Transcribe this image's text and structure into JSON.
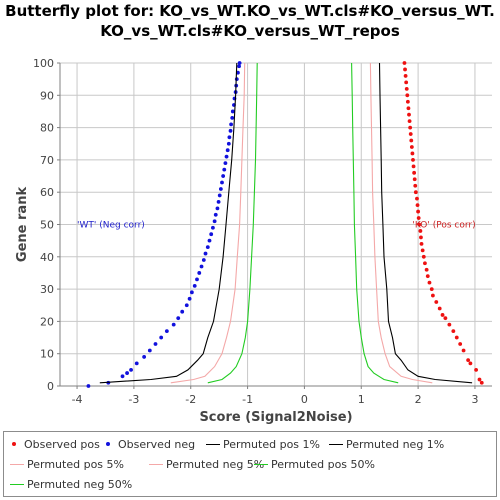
{
  "chart_data": {
    "type": "line",
    "title_lines": [
      "Butterfly plot for: KO_vs_WT.KO_vs_WT.cls#KO_versus_WT.",
      "KO_vs_WT.cls#KO_versus_WT_repos"
    ],
    "xlabel": "Score (Signal2Noise)",
    "ylabel": "Gene rank",
    "xlim": [
      -4.3,
      3.3
    ],
    "ylim": [
      0,
      100
    ],
    "x_ticks": [
      -4,
      -3,
      -2,
      -1,
      0,
      1,
      2,
      3
    ],
    "y_ticks": [
      0,
      10,
      20,
      30,
      40,
      50,
      60,
      70,
      80,
      90,
      100
    ],
    "grid": true,
    "grid_color": "#c8c8c8",
    "annotations": [
      {
        "text": "'WT' (Neg corr)",
        "x": -4.0,
        "y": 49,
        "color": "#2222cc"
      },
      {
        "text": "'KO' (Pos corr)",
        "x": 1.9,
        "y": 49,
        "color": "#cc2222"
      }
    ],
    "series": [
      {
        "name": "Observed pos",
        "kind": "points",
        "color": "#ee1111",
        "points": [
          [
            3.12,
            1
          ],
          [
            3.08,
            2
          ],
          [
            3.02,
            5
          ],
          [
            2.92,
            7
          ],
          [
            2.88,
            8
          ],
          [
            2.8,
            11
          ],
          [
            2.74,
            13
          ],
          [
            2.68,
            15
          ],
          [
            2.62,
            17
          ],
          [
            2.55,
            19
          ],
          [
            2.48,
            21
          ],
          [
            2.43,
            22
          ],
          [
            2.38,
            24
          ],
          [
            2.32,
            26
          ],
          [
            2.26,
            28
          ],
          [
            2.24,
            30
          ],
          [
            2.2,
            32
          ],
          [
            2.17,
            34
          ],
          [
            2.15,
            36
          ],
          [
            2.12,
            38
          ],
          [
            2.1,
            40
          ],
          [
            2.08,
            42
          ],
          [
            2.06,
            44
          ],
          [
            2.05,
            46
          ],
          [
            2.04,
            48
          ],
          [
            2.02,
            50
          ],
          [
            2.01,
            52
          ],
          [
            2.0,
            54
          ],
          [
            1.99,
            56
          ],
          [
            1.98,
            58
          ],
          [
            1.96,
            60
          ],
          [
            1.95,
            62
          ],
          [
            1.94,
            64
          ],
          [
            1.93,
            66
          ],
          [
            1.92,
            68
          ],
          [
            1.91,
            70
          ],
          [
            1.9,
            72
          ],
          [
            1.89,
            74
          ],
          [
            1.88,
            76
          ],
          [
            1.87,
            78
          ],
          [
            1.86,
            80
          ],
          [
            1.85,
            82
          ],
          [
            1.84,
            84
          ],
          [
            1.83,
            86
          ],
          [
            1.82,
            88
          ],
          [
            1.81,
            90
          ],
          [
            1.8,
            92
          ],
          [
            1.79,
            94
          ],
          [
            1.78,
            96
          ],
          [
            1.77,
            98
          ],
          [
            1.76,
            100
          ]
        ]
      },
      {
        "name": "Observed neg",
        "kind": "points",
        "color": "#1111dd",
        "points": [
          [
            -3.8,
            0
          ],
          [
            -3.45,
            1
          ],
          [
            -3.2,
            3
          ],
          [
            -3.12,
            4
          ],
          [
            -3.05,
            5
          ],
          [
            -2.95,
            7
          ],
          [
            -2.82,
            9
          ],
          [
            -2.72,
            11
          ],
          [
            -2.62,
            13
          ],
          [
            -2.52,
            15
          ],
          [
            -2.42,
            17
          ],
          [
            -2.3,
            19
          ],
          [
            -2.22,
            21
          ],
          [
            -2.15,
            23
          ],
          [
            -2.07,
            25
          ],
          [
            -2.02,
            27
          ],
          [
            -1.98,
            29
          ],
          [
            -1.93,
            31
          ],
          [
            -1.89,
            33
          ],
          [
            -1.85,
            35
          ],
          [
            -1.81,
            37
          ],
          [
            -1.77,
            39
          ],
          [
            -1.74,
            41
          ],
          [
            -1.7,
            43
          ],
          [
            -1.67,
            45
          ],
          [
            -1.64,
            47
          ],
          [
            -1.61,
            49
          ],
          [
            -1.58,
            51
          ],
          [
            -1.56,
            53
          ],
          [
            -1.53,
            55
          ],
          [
            -1.51,
            57
          ],
          [
            -1.49,
            59
          ],
          [
            -1.47,
            61
          ],
          [
            -1.45,
            63
          ],
          [
            -1.43,
            65
          ],
          [
            -1.41,
            67
          ],
          [
            -1.39,
            69
          ],
          [
            -1.37,
            71
          ],
          [
            -1.35,
            73
          ],
          [
            -1.33,
            75
          ],
          [
            -1.32,
            77
          ],
          [
            -1.3,
            79
          ],
          [
            -1.29,
            81
          ],
          [
            -1.27,
            83
          ],
          [
            -1.26,
            85
          ],
          [
            -1.24,
            87
          ],
          [
            -1.23,
            89
          ],
          [
            -1.21,
            91
          ],
          [
            -1.2,
            93
          ],
          [
            -1.19,
            95
          ],
          [
            -1.17,
            97
          ],
          [
            -1.15,
            99
          ],
          [
            -1.14,
            100
          ]
        ]
      },
      {
        "name": "Permuted pos 1%",
        "kind": "line",
        "color": "#000000",
        "points": [
          [
            2.95,
            1
          ],
          [
            2.3,
            2
          ],
          [
            2.0,
            3
          ],
          [
            1.82,
            5
          ],
          [
            1.7,
            8
          ],
          [
            1.6,
            10
          ],
          [
            1.55,
            15
          ],
          [
            1.48,
            20
          ],
          [
            1.45,
            30
          ],
          [
            1.4,
            40
          ],
          [
            1.38,
            50
          ],
          [
            1.36,
            60
          ],
          [
            1.35,
            70
          ],
          [
            1.34,
            80
          ],
          [
            1.33,
            90
          ],
          [
            1.32,
            100
          ]
        ]
      },
      {
        "name": "Permuted neg 1%",
        "kind": "line",
        "color": "#000000",
        "points": [
          [
            -3.6,
            1
          ],
          [
            -2.7,
            2
          ],
          [
            -2.25,
            3
          ],
          [
            -2.05,
            5
          ],
          [
            -1.88,
            8
          ],
          [
            -1.78,
            10
          ],
          [
            -1.7,
            15
          ],
          [
            -1.6,
            20
          ],
          [
            -1.5,
            30
          ],
          [
            -1.43,
            40
          ],
          [
            -1.38,
            50
          ],
          [
            -1.33,
            60
          ],
          [
            -1.28,
            70
          ],
          [
            -1.24,
            80
          ],
          [
            -1.21,
            90
          ],
          [
            -1.19,
            100
          ]
        ]
      },
      {
        "name": "Permuted pos 5%",
        "kind": "line",
        "color": "#f4a8a8",
        "points": [
          [
            2.25,
            1
          ],
          [
            1.9,
            2
          ],
          [
            1.7,
            3
          ],
          [
            1.5,
            6
          ],
          [
            1.42,
            10
          ],
          [
            1.35,
            15
          ],
          [
            1.3,
            20
          ],
          [
            1.27,
            30
          ],
          [
            1.24,
            40
          ],
          [
            1.22,
            50
          ],
          [
            1.2,
            60
          ],
          [
            1.19,
            70
          ],
          [
            1.18,
            80
          ],
          [
            1.17,
            90
          ],
          [
            1.16,
            100
          ]
        ]
      },
      {
        "name": "Permuted neg 5%",
        "kind": "line",
        "color": "#f4a8a8",
        "points": [
          [
            -2.35,
            1
          ],
          [
            -1.95,
            2
          ],
          [
            -1.75,
            3
          ],
          [
            -1.58,
            6
          ],
          [
            -1.45,
            10
          ],
          [
            -1.37,
            15
          ],
          [
            -1.3,
            20
          ],
          [
            -1.22,
            30
          ],
          [
            -1.18,
            40
          ],
          [
            -1.14,
            50
          ],
          [
            -1.12,
            60
          ],
          [
            -1.1,
            70
          ],
          [
            -1.08,
            80
          ],
          [
            -1.06,
            90
          ],
          [
            -1.05,
            100
          ]
        ]
      },
      {
        "name": "Permuted pos 50%",
        "kind": "line",
        "color": "#22cc22",
        "points": [
          [
            1.65,
            1
          ],
          [
            1.4,
            2
          ],
          [
            1.22,
            4
          ],
          [
            1.12,
            6
          ],
          [
            1.05,
            10
          ],
          [
            1.0,
            15
          ],
          [
            0.96,
            20
          ],
          [
            0.92,
            30
          ],
          [
            0.9,
            40
          ],
          [
            0.88,
            50
          ],
          [
            0.87,
            60
          ],
          [
            0.86,
            70
          ],
          [
            0.85,
            80
          ],
          [
            0.84,
            90
          ],
          [
            0.83,
            100
          ]
        ]
      },
      {
        "name": "Permuted neg 50%",
        "kind": "line",
        "color": "#22cc22",
        "points": [
          [
            -1.7,
            1
          ],
          [
            -1.45,
            2
          ],
          [
            -1.3,
            4
          ],
          [
            -1.2,
            6
          ],
          [
            -1.1,
            10
          ],
          [
            -1.04,
            15
          ],
          [
            -1.0,
            20
          ],
          [
            -0.96,
            30
          ],
          [
            -0.93,
            40
          ],
          [
            -0.9,
            50
          ],
          [
            -0.88,
            60
          ],
          [
            -0.86,
            70
          ],
          [
            -0.85,
            80
          ],
          [
            -0.84,
            90
          ],
          [
            -0.83,
            100
          ]
        ]
      }
    ]
  }
}
